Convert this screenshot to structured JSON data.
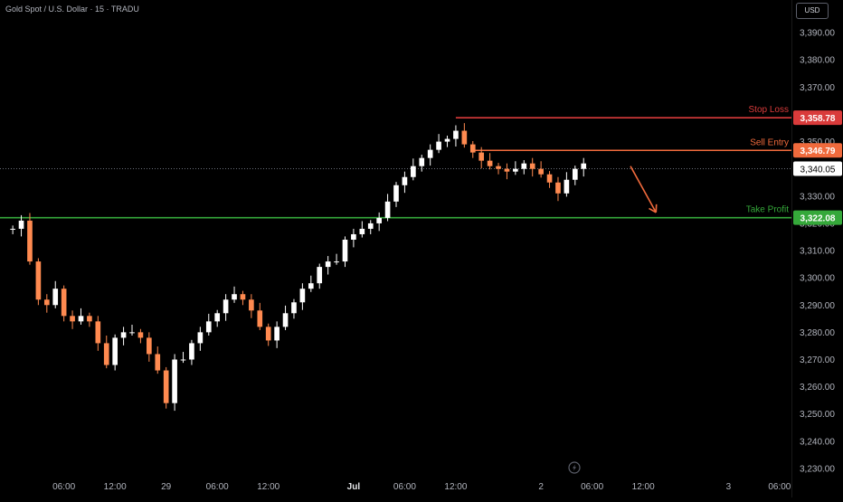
{
  "header": {
    "title": "Gold Spot / U.S. Dollar · 15 · TRADU",
    "currency": "USD"
  },
  "colors": {
    "background": "#000000",
    "candle_up": "#ffffff",
    "candle_down": "#ff8a50",
    "stop_loss": "#d93b3b",
    "sell_entry": "#f06a3c",
    "take_profit": "#35a83a",
    "arrow": "#f06a3c",
    "axis_text": "#b2b5be"
  },
  "chart_data": {
    "type": "line",
    "title": "Gold Spot / U.S. Dollar · 15 · TRADU",
    "xlabel": "",
    "ylabel": "",
    "ylim": [
      3225,
      3402
    ],
    "grid": false,
    "y_ticks": [
      3230,
      3240,
      3250,
      3260,
      3270,
      3280,
      3290,
      3300,
      3310,
      3320,
      3330,
      3340,
      3350,
      3360,
      3370,
      3380,
      3390
    ],
    "y_tick_labels": [
      "3,230.00",
      "3,240.00",
      "3,250.00",
      "3,260.00",
      "3,270.00",
      "3,280.00",
      "3,290.00",
      "3,300.00",
      "3,310.00",
      "3,320.00",
      "3,330.00",
      "3,340.00",
      "3,350.00",
      "3,360.00",
      "3,370.00",
      "3,380.00",
      "3,390.00"
    ],
    "x_ticks": [
      {
        "label": "06:00",
        "bar": 6
      },
      {
        "label": "12:00",
        "bar": 12
      },
      {
        "label": "29",
        "bar": 18
      },
      {
        "label": "06:00",
        "bar": 24
      },
      {
        "label": "12:00",
        "bar": 30
      },
      {
        "label": "Jul",
        "bar": 40
      },
      {
        "label": "06:00",
        "bar": 46
      },
      {
        "label": "12:00",
        "bar": 52
      },
      {
        "label": "2",
        "bar": 62
      },
      {
        "label": "06:00",
        "bar": 68
      },
      {
        "label": "12:00",
        "bar": 74
      },
      {
        "label": "3",
        "bar": 84
      },
      {
        "label": "06:00",
        "bar": 90
      }
    ],
    "x_bar_range": [
      -1.5,
      91.5
    ],
    "series": [
      {
        "values": [
          3318,
          3321,
          3306,
          3292,
          3290,
          3296,
          3286,
          3284,
          3286,
          3284,
          3276,
          3268,
          3278,
          3280,
          3280,
          3278,
          3272,
          3266,
          3254,
          3270,
          3270,
          3276,
          3280,
          3284,
          3287,
          3292,
          3294,
          3292,
          3288,
          3282,
          3277,
          3282,
          3287,
          3291,
          3296,
          3298,
          3304,
          3306,
          3306,
          3314,
          3316,
          3318,
          3320,
          3322,
          3328,
          3334,
          3337,
          3341,
          3344,
          3347,
          3350,
          3351,
          3354,
          3349,
          3346,
          3343,
          3341,
          3340,
          3339,
          3340,
          3342,
          3340,
          3338,
          3335,
          3331,
          3336,
          3340,
          3342
        ]
      }
    ],
    "levels": [
      {
        "name": "Stop Loss",
        "value": 3358.78,
        "label": "3,358.78",
        "start_bar": 52
      },
      {
        "name": "Sell Entry",
        "value": 3346.79,
        "label": "3,346.79",
        "start_bar": 54
      },
      {
        "name": "Take Profit",
        "value": 3322.08,
        "label": "3,322.08",
        "start_bar": -1.5
      }
    ],
    "last_price": {
      "value": 3340.05,
      "label": "3,340.05"
    },
    "arrow": {
      "from": {
        "bar": 72.5,
        "value": 3341
      },
      "to": {
        "bar": 75.5,
        "value": 3324
      }
    }
  }
}
